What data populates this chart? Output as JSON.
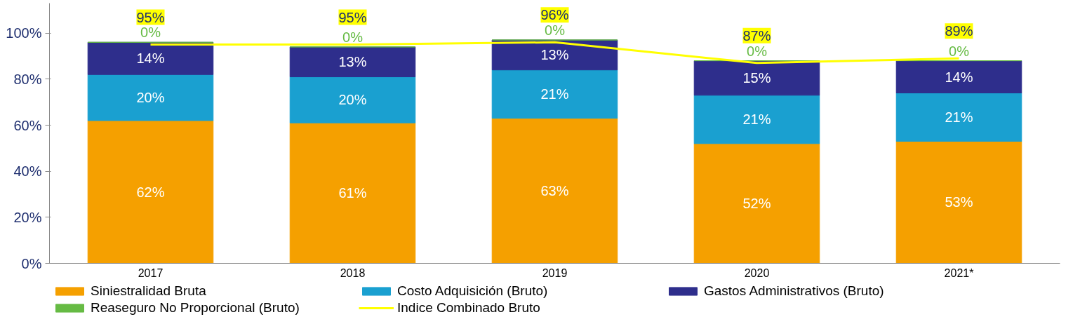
{
  "chart_data": {
    "type": "bar",
    "stacked": true,
    "categories": [
      "2017",
      "2018",
      "2019",
      "2020",
      "2021*"
    ],
    "series": [
      {
        "name": "Siniestralidad Bruta",
        "color": "#f5a000",
        "values": [
          62,
          61,
          63,
          52,
          53
        ],
        "value_labels": [
          "62%",
          "61%",
          "63%",
          "52%",
          "53%"
        ]
      },
      {
        "name": "Costo Adquisición (Bruto)",
        "color": "#1aa0d0",
        "values": [
          20,
          20,
          21,
          21,
          21
        ],
        "value_labels": [
          "20%",
          "20%",
          "21%",
          "21%",
          "21%"
        ]
      },
      {
        "name": "Gastos Administrativos (Bruto)",
        "color": "#2e2e8c",
        "values": [
          14,
          13,
          13,
          15,
          14
        ],
        "value_labels": [
          "14%",
          "13%",
          "13%",
          "15%",
          "14%"
        ]
      },
      {
        "name": "Reaseguro No Proporcional (Bruto)",
        "color": "#66bb44",
        "values": [
          0,
          0,
          0,
          0,
          0
        ],
        "value_labels": [
          "0%",
          "0%",
          "0%",
          "0%",
          "0%"
        ]
      },
      {
        "name": "Indice Combinado Bruto",
        "type": "line",
        "color": "#ffff00",
        "values": [
          95,
          95,
          96,
          87,
          89
        ],
        "value_labels": [
          "95%",
          "95%",
          "96%",
          "87%",
          "89%"
        ]
      }
    ],
    "ylim": [
      0,
      113
    ],
    "yticks": [
      {
        "value": 0,
        "label": "0%"
      },
      {
        "value": 20,
        "label": "20%"
      },
      {
        "value": 40,
        "label": "40%"
      },
      {
        "value": 60,
        "label": "60%"
      },
      {
        "value": 80,
        "label": "80%"
      },
      {
        "value": 100,
        "label": "100%"
      }
    ],
    "legend": "bottom",
    "marker": "none"
  }
}
